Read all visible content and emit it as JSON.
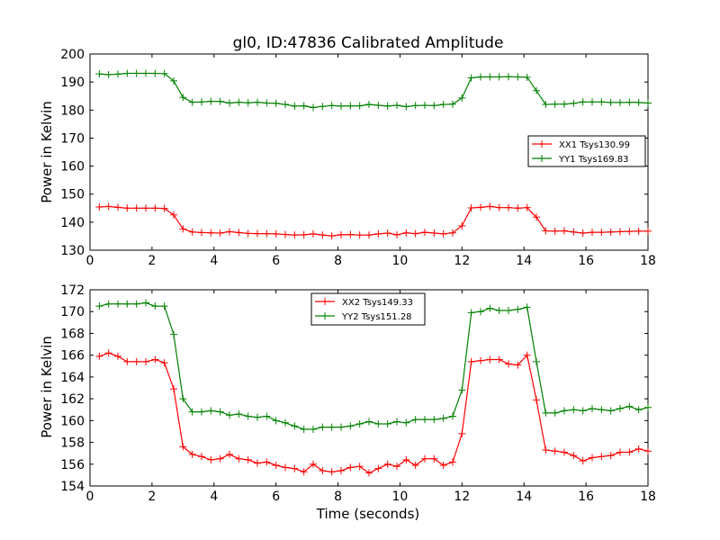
{
  "chart_data": [
    {
      "type": "line",
      "title": "gl0, ID:47836 Calibrated Amplitude",
      "xlabel": "",
      "ylabel": "Power in Kelvin",
      "xlim": [
        0,
        18
      ],
      "ylim": [
        130,
        200
      ],
      "xticks": [
        "0",
        "2",
        "4",
        "6",
        "8",
        "10",
        "12",
        "14",
        "16",
        "18"
      ],
      "yticks": [
        "130",
        "140",
        "150",
        "160",
        "170",
        "180",
        "190",
        "200"
      ],
      "legend": "center-right",
      "grid": false,
      "x": [
        0.3,
        0.6,
        0.9,
        1.2,
        1.5,
        1.8,
        2.1,
        2.4,
        2.7,
        3.0,
        3.3,
        3.6,
        3.9,
        4.2,
        4.5,
        4.8,
        5.1,
        5.4,
        5.7,
        6.0,
        6.3,
        6.6,
        6.9,
        7.2,
        7.5,
        7.8,
        8.1,
        8.4,
        8.7,
        9.0,
        9.3,
        9.6,
        9.9,
        10.2,
        10.5,
        10.8,
        11.1,
        11.4,
        11.7,
        12.0,
        12.3,
        12.6,
        12.9,
        13.2,
        13.5,
        13.8,
        14.1,
        14.4,
        14.7,
        15.0,
        15.3,
        15.6,
        15.9,
        16.2,
        16.5,
        16.8,
        17.1,
        17.4,
        17.7,
        18.0
      ],
      "series": [
        {
          "name": "XX1 Tsys130.99",
          "color": "#ff0000",
          "values": [
            145.4,
            145.6,
            145.3,
            145.0,
            145.0,
            145.0,
            145.0,
            144.9,
            142.6,
            137.6,
            136.5,
            136.3,
            136.2,
            136.1,
            136.6,
            136.3,
            136.0,
            135.9,
            135.9,
            135.8,
            135.6,
            135.4,
            135.5,
            135.8,
            135.4,
            135.1,
            135.5,
            135.6,
            135.4,
            135.4,
            135.8,
            136.1,
            135.5,
            136.2,
            135.9,
            136.4,
            136.1,
            135.8,
            136.2,
            138.7,
            145.1,
            145.3,
            145.6,
            145.2,
            145.2,
            145.0,
            145.2,
            141.8,
            136.9,
            136.8,
            136.9,
            136.5,
            136.1,
            136.4,
            136.4,
            136.5,
            136.6,
            136.7,
            136.8,
            136.8
          ]
        },
        {
          "name": "YY1 Tsys169.83",
          "color": "#008000",
          "values": [
            192.9,
            192.6,
            192.8,
            193.1,
            193.1,
            193.1,
            193.1,
            193.0,
            190.4,
            184.5,
            182.8,
            182.9,
            183.1,
            183.1,
            182.5,
            182.8,
            182.6,
            182.8,
            182.5,
            182.4,
            182.0,
            181.4,
            181.5,
            180.9,
            181.3,
            181.6,
            181.4,
            181.5,
            181.5,
            182.0,
            181.7,
            181.4,
            181.7,
            181.2,
            181.6,
            181.7,
            181.6,
            182.0,
            182.1,
            184.3,
            191.5,
            191.8,
            191.8,
            191.8,
            191.9,
            191.8,
            191.7,
            186.9,
            182.0,
            182.1,
            182.1,
            182.4,
            182.9,
            182.9,
            182.9,
            182.7,
            182.7,
            182.8,
            182.7,
            182.5
          ]
        }
      ]
    },
    {
      "type": "line",
      "title": "",
      "xlabel": "Time (seconds)",
      "ylabel": "Power in Kelvin",
      "xlim": [
        0,
        18
      ],
      "ylim": [
        154,
        172
      ],
      "xticks": [
        "0",
        "2",
        "4",
        "6",
        "8",
        "10",
        "12",
        "14",
        "16",
        "18"
      ],
      "yticks": [
        "154",
        "156",
        "158",
        "160",
        "162",
        "164",
        "166",
        "168",
        "170",
        "172"
      ],
      "legend": "top-center",
      "grid": false,
      "x": [
        0.3,
        0.6,
        0.9,
        1.2,
        1.5,
        1.8,
        2.1,
        2.4,
        2.7,
        3.0,
        3.3,
        3.6,
        3.9,
        4.2,
        4.5,
        4.8,
        5.1,
        5.4,
        5.7,
        6.0,
        6.3,
        6.6,
        6.9,
        7.2,
        7.5,
        7.8,
        8.1,
        8.4,
        8.7,
        9.0,
        9.3,
        9.6,
        9.9,
        10.2,
        10.5,
        10.8,
        11.1,
        11.4,
        11.7,
        12.0,
        12.3,
        12.6,
        12.9,
        13.2,
        13.5,
        13.8,
        14.1,
        14.4,
        14.7,
        15.0,
        15.3,
        15.6,
        15.9,
        16.2,
        16.5,
        16.8,
        17.1,
        17.4,
        17.7,
        18.0
      ],
      "series": [
        {
          "name": "XX2 Tsys149.33",
          "color": "#ff0000",
          "values": [
            165.9,
            166.2,
            165.9,
            165.4,
            165.4,
            165.4,
            165.6,
            165.3,
            162.9,
            157.6,
            156.9,
            156.7,
            156.4,
            156.5,
            156.9,
            156.5,
            156.4,
            156.1,
            156.2,
            155.9,
            155.7,
            155.6,
            155.3,
            156.0,
            155.4,
            155.3,
            155.4,
            155.7,
            155.8,
            155.2,
            155.6,
            156.0,
            155.8,
            156.4,
            155.9,
            156.5,
            156.5,
            155.9,
            156.2,
            158.8,
            165.4,
            165.5,
            165.6,
            165.6,
            165.2,
            165.1,
            166.0,
            161.9,
            157.3,
            157.2,
            157.1,
            156.8,
            156.3,
            156.6,
            156.7,
            156.8,
            157.1,
            157.1,
            157.4,
            157.2
          ]
        },
        {
          "name": "YY2 Tsys151.28",
          "color": "#008000",
          "values": [
            170.5,
            170.7,
            170.7,
            170.7,
            170.7,
            170.8,
            170.5,
            170.5,
            167.9,
            162.0,
            160.8,
            160.8,
            160.9,
            160.8,
            160.5,
            160.6,
            160.4,
            160.3,
            160.4,
            160.0,
            159.8,
            159.5,
            159.2,
            159.2,
            159.4,
            159.4,
            159.4,
            159.5,
            159.7,
            159.9,
            159.7,
            159.7,
            159.9,
            159.8,
            160.1,
            160.1,
            160.1,
            160.2,
            160.4,
            162.8,
            169.9,
            170.0,
            170.3,
            170.1,
            170.1,
            170.2,
            170.4,
            165.4,
            160.7,
            160.7,
            160.9,
            161.0,
            160.9,
            161.1,
            161.0,
            160.9,
            161.1,
            161.3,
            161.0,
            161.2
          ]
        }
      ]
    }
  ]
}
